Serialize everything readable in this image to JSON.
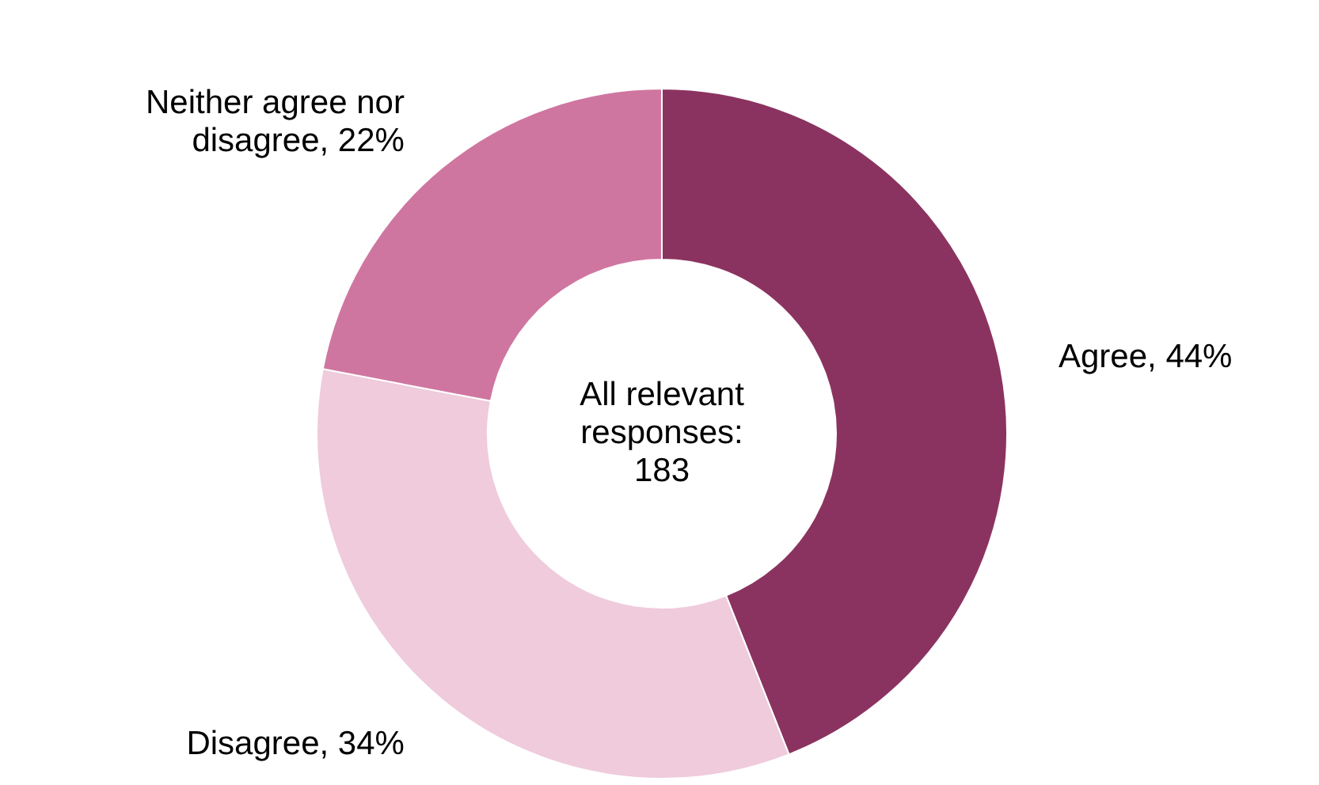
{
  "chart_data": {
    "type": "donut",
    "categories": [
      "Agree",
      "Disagree",
      "Neither agree nor disagree"
    ],
    "values": [
      44,
      34,
      22
    ],
    "value_labels": [
      "44%",
      "34%",
      "22%"
    ],
    "colors": [
      "#8b3360",
      "#efcbdc",
      "#cf76a0"
    ],
    "annotations": [
      "All relevant responses: 183"
    ]
  }
}
